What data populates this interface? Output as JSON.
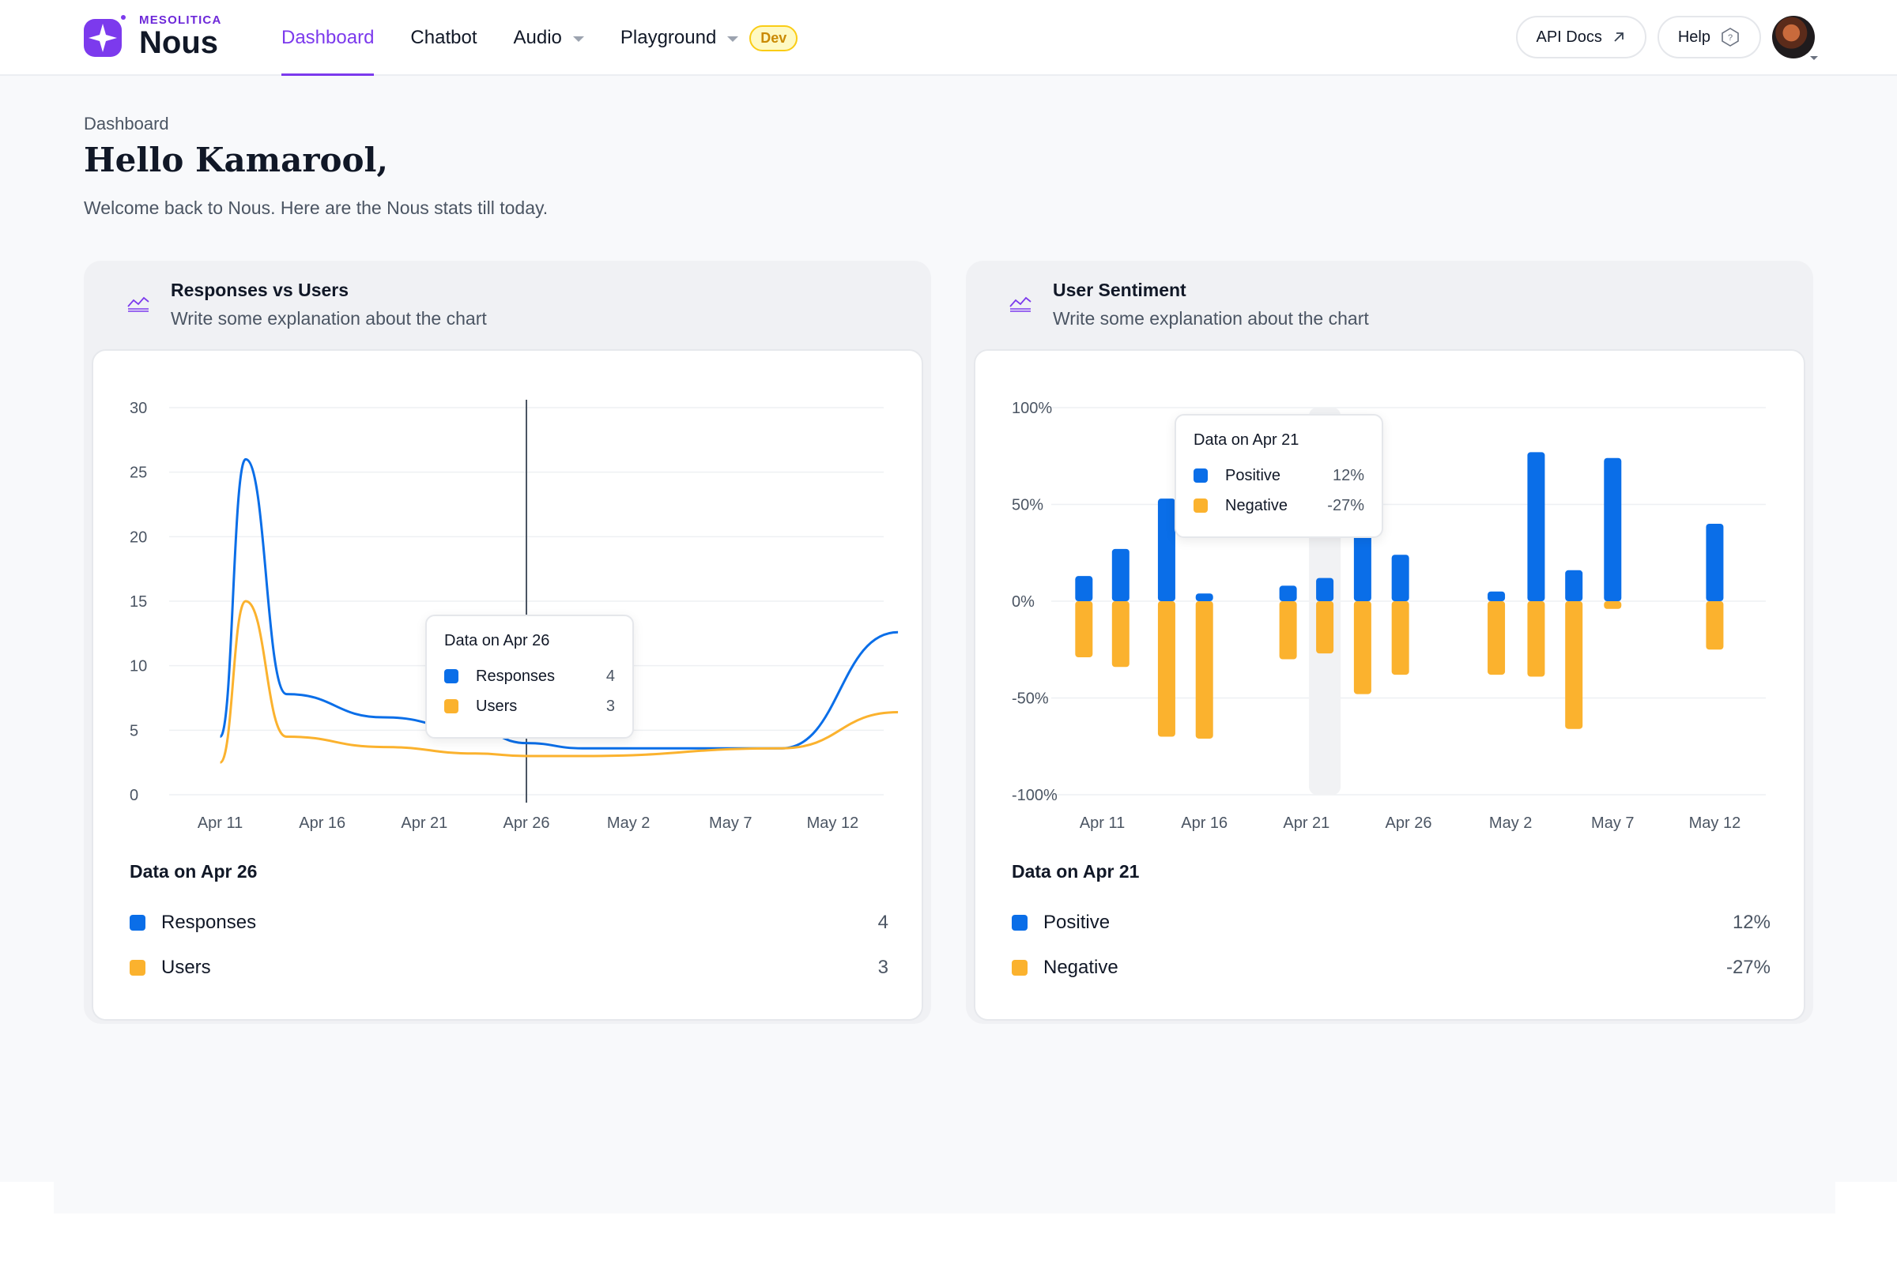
{
  "brand": {
    "company": "MESOLITICA",
    "product": "Nous",
    "accent": "#7c3aed"
  },
  "nav": {
    "items": [
      {
        "label": "Dashboard",
        "active": true,
        "dropdown": false
      },
      {
        "label": "Chatbot",
        "active": false,
        "dropdown": false
      },
      {
        "label": "Audio",
        "active": false,
        "dropdown": true
      },
      {
        "label": "Playground",
        "active": false,
        "dropdown": true
      }
    ],
    "dev_badge": "Dev"
  },
  "header_right": {
    "api_docs": "API Docs",
    "help": "Help",
    "avatar_icon": "user-avatar"
  },
  "page": {
    "breadcrumb": "Dashboard",
    "greeting": "Hello Kamarool,",
    "welcome": "Welcome back to Nous. Here are the Nous stats till today."
  },
  "colors": {
    "blue": "#0a6ee8",
    "yellow": "#fbb22e"
  },
  "cards": {
    "responses": {
      "title": "Responses vs Users",
      "description": "Write some explanation about the chart",
      "icon": "chart-area-icon",
      "tooltip": {
        "title": "Data on Apr 26",
        "rows": [
          {
            "label": "Responses",
            "value": "4"
          },
          {
            "label": "Users",
            "value": "3"
          }
        ]
      },
      "summary": {
        "title": "Data on Apr 26",
        "rows": [
          {
            "label": "Responses",
            "value": "4"
          },
          {
            "label": "Users",
            "value": "3"
          }
        ]
      }
    },
    "sentiment": {
      "title": "User Sentiment",
      "description": "Write some explanation about the chart",
      "icon": "chart-area-icon",
      "tooltip": {
        "title": "Data on Apr 21",
        "rows": [
          {
            "label": "Positive",
            "value": "12%"
          },
          {
            "label": "Negative",
            "value": "-27%"
          }
        ]
      },
      "summary": {
        "title": "Data on Apr 21",
        "rows": [
          {
            "label": "Positive",
            "value": "12%"
          },
          {
            "label": "Negative",
            "value": "-27%"
          }
        ]
      }
    }
  },
  "chart_data": [
    {
      "type": "line",
      "x_labels": [
        "Apr 11",
        "Apr 16",
        "Apr 21",
        "Apr 26",
        "May 2",
        "May 7",
        "May 12"
      ],
      "ylim": [
        0,
        30
      ],
      "y_ticks": [
        "0",
        "5",
        "10",
        "15",
        "20",
        "25",
        "30"
      ],
      "highlight": "Apr 26",
      "series": [
        {
          "name": "Responses",
          "color": "#0a6ee8",
          "points": [
            [
              0,
              4.5
            ],
            [
              0.25,
              26
            ],
            [
              0.65,
              7.8
            ],
            [
              1.6,
              6
            ],
            [
              2.5,
              5
            ],
            [
              3,
              4
            ],
            [
              3.55,
              3.6
            ],
            [
              5.5,
              3.6
            ],
            [
              6.64,
              12.6
            ]
          ]
        },
        {
          "name": "Users",
          "color": "#fbb22e",
          "points": [
            [
              0,
              2.5
            ],
            [
              0.25,
              15
            ],
            [
              0.65,
              4.5
            ],
            [
              1.6,
              3.7
            ],
            [
              2.5,
              3.2
            ],
            [
              3,
              3
            ],
            [
              3.55,
              3
            ],
            [
              5.5,
              3.6
            ],
            [
              6.64,
              6.4
            ]
          ]
        }
      ]
    },
    {
      "type": "bar",
      "x_labels": [
        "Apr 11",
        "Apr 16",
        "Apr 21",
        "Apr 26",
        "May 2",
        "May 7",
        "May 12"
      ],
      "y_ticks": [
        "-100%",
        "-50%",
        "0%",
        "50%",
        "100%"
      ],
      "ylim": [
        -100,
        100
      ],
      "highlight_index": 5,
      "bars": [
        {
          "pos": -0.18,
          "positive": 13,
          "negative": -29
        },
        {
          "pos": 0.18,
          "positive": 27,
          "negative": -34
        },
        {
          "pos": 0.63,
          "positive": 53,
          "negative": -70
        },
        {
          "pos": 1.0,
          "positive": 4,
          "negative": -71
        },
        {
          "pos": 1.82,
          "positive": 8,
          "negative": -30
        },
        {
          "pos": 2.18,
          "positive": 12,
          "negative": -27
        },
        {
          "pos": 2.55,
          "positive": 50,
          "negative": -48
        },
        {
          "pos": 2.92,
          "positive": 24,
          "negative": -38
        },
        {
          "pos": 3.86,
          "positive": 5,
          "negative": -38
        },
        {
          "pos": 4.25,
          "positive": 77,
          "negative": -39
        },
        {
          "pos": 4.62,
          "positive": 16,
          "negative": -66
        },
        {
          "pos": 5.0,
          "positive": 74,
          "negative": -4
        },
        {
          "pos": 6.0,
          "positive": 40,
          "negative": -25
        }
      ]
    }
  ]
}
